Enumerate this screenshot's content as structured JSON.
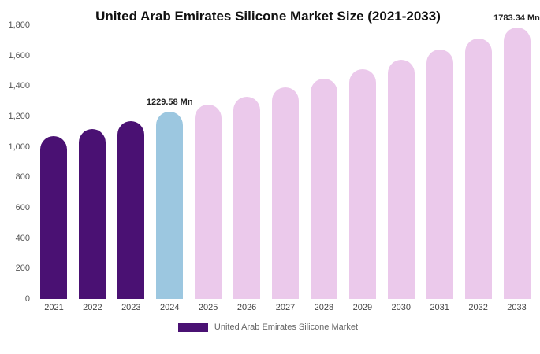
{
  "chart_data": {
    "type": "bar",
    "title": "United Arab Emirates Silicone Market Size (2021-2033)",
    "categories": [
      "2021",
      "2022",
      "2023",
      "2024",
      "2025",
      "2026",
      "2027",
      "2028",
      "2029",
      "2030",
      "2031",
      "2032",
      "2033"
    ],
    "values": [
      1070,
      1120,
      1170,
      1229.58,
      1280,
      1330,
      1390,
      1450,
      1510,
      1575,
      1640,
      1710,
      1783.34
    ],
    "bar_labels": {
      "2024": "1229.58 Mn",
      "2033": "1783.34 Mn"
    },
    "ylim": [
      0,
      1800
    ],
    "yticks": [
      0,
      200,
      400,
      600,
      800,
      1000,
      1200,
      1400,
      1600,
      1800
    ],
    "ytick_labels": [
      "0",
      "200",
      "400",
      "600",
      "800",
      "1,000",
      "1,200",
      "1,400",
      "1,600",
      "1,800"
    ],
    "grid": false,
    "xlabel": "",
    "ylabel": "",
    "colors": {
      "historical": "#4A1173",
      "current": "#9CC7E0",
      "forecast": "#EBC9EB"
    },
    "bar_color_keys": [
      "historical",
      "historical",
      "historical",
      "current",
      "forecast",
      "forecast",
      "forecast",
      "forecast",
      "forecast",
      "forecast",
      "forecast",
      "forecast",
      "forecast"
    ],
    "legend": {
      "label": "United Arab Emirates Silicone Market",
      "swatch_color": "#4A1173",
      "position": "bottom"
    }
  }
}
